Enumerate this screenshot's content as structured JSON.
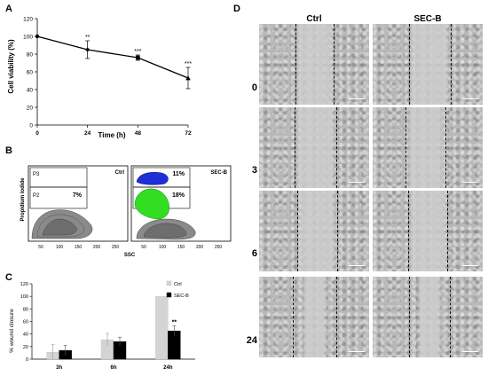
{
  "panels": {
    "a": {
      "letter": "A"
    },
    "b": {
      "letter": "B"
    },
    "c": {
      "letter": "C"
    },
    "d": {
      "letter": "D"
    }
  },
  "flow": {
    "ylabel": "Propidium iodide",
    "xlabel": "SSC",
    "left": {
      "name": "Ctrl",
      "gate_upper": "P3",
      "gate_lower": "P2",
      "value": "7%"
    },
    "right": {
      "name": "SEC-B",
      "value_upper": "11%",
      "value_lower": "18%"
    },
    "x_ticks": [
      "50",
      "100",
      "150",
      "200",
      "250"
    ],
    "colors": {
      "blue_population": "#1f2fd8",
      "green_population": "#33dd22",
      "gray_population": "#808080"
    }
  },
  "micro": {
    "columns": [
      "Ctrl",
      "SEC-B"
    ],
    "rows": [
      "0",
      "3",
      "6",
      "24"
    ]
  },
  "chart_data": [
    {
      "type": "line",
      "x": [
        0,
        24,
        48,
        72
      ],
      "values": [
        100,
        85,
        76,
        53
      ],
      "errors": [
        0,
        10,
        3,
        12
      ],
      "significance": [
        "",
        "**",
        "***",
        "***"
      ],
      "xlabel": "Time (h)",
      "ylabel": "Cell viability (%)",
      "xlim": [
        0,
        72
      ],
      "ylim": [
        0,
        120
      ],
      "y_ticks": [
        0,
        20,
        40,
        60,
        80,
        100,
        120
      ],
      "x_ticks": [
        0,
        24,
        48,
        72
      ],
      "grid": false,
      "color": "#000000"
    },
    {
      "type": "bar",
      "categories": [
        "3h",
        "6h",
        "24h"
      ],
      "series": [
        {
          "name": "Ctrl",
          "values": [
            11,
            31,
            100
          ],
          "errors": [
            12,
            10,
            0
          ],
          "color": "#d4d4d4"
        },
        {
          "name": "SEC-B",
          "values": [
            14,
            28,
            45
          ],
          "errors": [
            8,
            7,
            8
          ],
          "color": "#000000"
        }
      ],
      "significance": [
        "",
        "",
        "**"
      ],
      "ylabel": "% wound closure",
      "ylim": [
        0,
        120
      ],
      "y_ticks": [
        0,
        20,
        40,
        60,
        80,
        100,
        120
      ],
      "legend": "top-right",
      "grid": false
    }
  ]
}
